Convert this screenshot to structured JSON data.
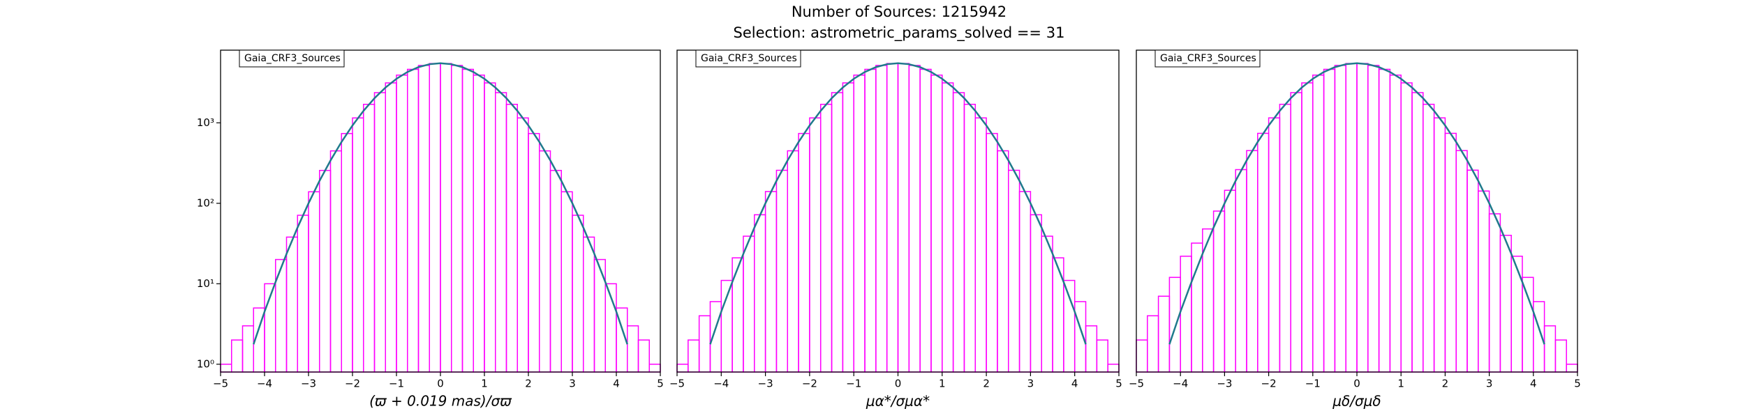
{
  "title": "Number of Sources: 1215942",
  "subtitle": "Selection: astrometric_params_solved == 31",
  "chart_data": [
    {
      "type": "histogram",
      "legend_label": "Gaia_CRF3_Sources",
      "xlabel": "(ϖ + 0.019 mas)/σϖ",
      "color": "#ff00ff",
      "yscale": "log",
      "xlim": [
        -5,
        5
      ],
      "ylim": [
        0.8,
        8000
      ],
      "bins": [
        -5,
        -4.75,
        -4.5,
        -4.25,
        -4,
        -3.75,
        -3.5,
        -3.25,
        -3,
        -2.75,
        -2.5,
        -2.25,
        -2,
        -1.75,
        -1.5,
        -1.25,
        -1,
        -0.75,
        -0.5,
        -0.25,
        0,
        0.25,
        0.5,
        0.75,
        1,
        1.25,
        1.5,
        1.75,
        2,
        2.25,
        2.5,
        2.75,
        3,
        3.25,
        3.5,
        3.75,
        4,
        4.25,
        4.5,
        4.75,
        5
      ],
      "counts": [
        1,
        2,
        3,
        5,
        10,
        20,
        38,
        71,
        139,
        256,
        448,
        736,
        1150,
        1698,
        2372,
        3135,
        3916,
        4623,
        5166,
        5462,
        5462,
        5166,
        4623,
        3916,
        3135,
        2372,
        1698,
        1150,
        736,
        448,
        256,
        139,
        71,
        38,
        20,
        10,
        5,
        3,
        2,
        1
      ],
      "curve": {
        "color": "#1f7a8c",
        "x": [
          -5,
          -4.75,
          -4.5,
          -4.25,
          -4,
          -3.75,
          -3.5,
          -3.25,
          -3,
          -2.75,
          -2.5,
          -2.25,
          -2,
          -1.75,
          -1.5,
          -1.25,
          -1,
          -0.75,
          -0.5,
          -0.25,
          0,
          0.25,
          0.5,
          0.75,
          1,
          1.25,
          1.5,
          1.75,
          2,
          2.25,
          2.5,
          2.75,
          3,
          3.25,
          3.5,
          3.75,
          4,
          4.25,
          4.5,
          4.75,
          5
        ],
        "values": [
          null,
          null,
          null,
          1.77,
          4.5,
          10.5,
          23.5,
          49.9,
          100,
          190,
          340,
          578,
          928,
          1407,
          2024,
          2744,
          3524,
          4282,
          4921,
          5349,
          5500,
          5349,
          4921,
          4282,
          3524,
          2744,
          2024,
          1407,
          928,
          578,
          340,
          190,
          100,
          49.9,
          23.5,
          10.5,
          4.5,
          1.77,
          null,
          null,
          null
        ]
      },
      "xticks": [
        {
          "value": -5,
          "label": "−5"
        },
        {
          "value": -4,
          "label": "−4"
        },
        {
          "value": -3,
          "label": "−3"
        },
        {
          "value": -2,
          "label": "−2"
        },
        {
          "value": -1,
          "label": "−1"
        },
        0,
        1,
        2,
        3,
        4,
        5
      ],
      "yticks": [
        {
          "value": 1,
          "label": "10⁰"
        },
        {
          "value": 10,
          "label": "10¹"
        },
        {
          "value": 100,
          "label": "10²"
        },
        {
          "value": 1000,
          "label": "10³"
        }
      ]
    },
    {
      "type": "histogram",
      "legend_label": "Gaia_CRF3_Sources",
      "xlabel": "μα*/σμα*",
      "color": "#ff00ff",
      "yscale": "log",
      "xlim": [
        -5,
        5
      ],
      "ylim": [
        0.8,
        8000
      ],
      "bins": [
        -5,
        -4.75,
        -4.5,
        -4.25,
        -4,
        -3.75,
        -3.5,
        -3.25,
        -3,
        -2.75,
        -2.5,
        -2.25,
        -2,
        -1.75,
        -1.5,
        -1.25,
        -1,
        -0.75,
        -0.5,
        -0.25,
        0,
        0.25,
        0.5,
        0.75,
        1,
        1.25,
        1.5,
        1.75,
        2,
        2.25,
        2.5,
        2.75,
        3,
        3.25,
        3.5,
        3.75,
        4,
        4.25,
        4.5,
        4.75,
        5
      ],
      "counts": [
        1,
        2,
        4,
        6,
        11,
        21,
        39,
        72,
        140,
        257,
        449,
        737,
        1151,
        1699,
        2373,
        3136,
        3917,
        4624,
        5167,
        5463,
        5463,
        5167,
        4624,
        3917,
        3136,
        2373,
        1699,
        1151,
        737,
        449,
        257,
        140,
        72,
        39,
        21,
        11,
        6,
        3,
        2,
        1
      ],
      "curve": {
        "color": "#1f7a8c",
        "x": [
          -5,
          -4.75,
          -4.5,
          -4.25,
          -4,
          -3.75,
          -3.5,
          -3.25,
          -3,
          -2.75,
          -2.5,
          -2.25,
          -2,
          -1.75,
          -1.5,
          -1.25,
          -1,
          -0.75,
          -0.5,
          -0.25,
          0,
          0.25,
          0.5,
          0.75,
          1,
          1.25,
          1.5,
          1.75,
          2,
          2.25,
          2.5,
          2.75,
          3,
          3.25,
          3.5,
          3.75,
          4,
          4.25,
          4.5,
          4.75,
          5
        ],
        "values": [
          null,
          null,
          null,
          1.77,
          4.5,
          10.5,
          23.5,
          49.9,
          100,
          190,
          340,
          578,
          928,
          1407,
          2024,
          2744,
          3524,
          4282,
          4921,
          5349,
          5500,
          5349,
          4921,
          4282,
          3524,
          2744,
          2024,
          1407,
          928,
          578,
          340,
          190,
          100,
          49.9,
          23.5,
          10.5,
          4.5,
          1.77,
          null,
          null,
          null
        ]
      },
      "xticks": [
        {
          "value": -5,
          "label": "−5"
        },
        {
          "value": -4,
          "label": "−4"
        },
        {
          "value": -3,
          "label": "−3"
        },
        {
          "value": -2,
          "label": "−2"
        },
        {
          "value": -1,
          "label": "−1"
        },
        0,
        1,
        2,
        3,
        4,
        5
      ]
    },
    {
      "type": "histogram",
      "legend_label": "Gaia_CRF3_Sources",
      "xlabel": "μδ/σμδ",
      "color": "#ff00ff",
      "yscale": "log",
      "xlim": [
        -5,
        5
      ],
      "ylim": [
        0.8,
        8000
      ],
      "bins": [
        -5,
        -4.75,
        -4.5,
        -4.25,
        -4,
        -3.75,
        -3.5,
        -3.25,
        -3,
        -2.75,
        -2.5,
        -2.25,
        -2,
        -1.75,
        -1.5,
        -1.25,
        -1,
        -0.75,
        -0.5,
        -0.25,
        0,
        0.25,
        0.5,
        0.75,
        1,
        1.25,
        1.5,
        1.75,
        2,
        2.25,
        2.5,
        2.75,
        3,
        3.25,
        3.5,
        3.75,
        4,
        4.25,
        4.5,
        4.75,
        5
      ],
      "counts": [
        2,
        4,
        7,
        12,
        22,
        32,
        48,
        80,
        145,
        262,
        452,
        740,
        1152,
        1700,
        2374,
        3137,
        3918,
        4625,
        5168,
        5464,
        5464,
        5168,
        4625,
        3918,
        3137,
        2374,
        1700,
        1152,
        740,
        452,
        258,
        142,
        74,
        40,
        22,
        12,
        6,
        3,
        2,
        1
      ],
      "curve": {
        "color": "#1f7a8c",
        "x": [
          -5,
          -4.75,
          -4.5,
          -4.25,
          -4,
          -3.75,
          -3.5,
          -3.25,
          -3,
          -2.75,
          -2.5,
          -2.25,
          -2,
          -1.75,
          -1.5,
          -1.25,
          -1,
          -0.75,
          -0.5,
          -0.25,
          0,
          0.25,
          0.5,
          0.75,
          1,
          1.25,
          1.5,
          1.75,
          2,
          2.25,
          2.5,
          2.75,
          3,
          3.25,
          3.5,
          3.75,
          4,
          4.25,
          4.5,
          4.75,
          5
        ],
        "values": [
          null,
          null,
          null,
          1.77,
          4.5,
          10.5,
          23.5,
          49.9,
          100,
          190,
          340,
          578,
          928,
          1407,
          2024,
          2744,
          3524,
          4282,
          4921,
          5349,
          5500,
          5349,
          4921,
          4282,
          3524,
          2744,
          2024,
          1407,
          928,
          578,
          340,
          190,
          100,
          49.9,
          23.5,
          10.5,
          4.5,
          1.77,
          null,
          null,
          null
        ]
      },
      "xticks": [
        {
          "value": -5,
          "label": "−5"
        },
        {
          "value": -4,
          "label": "−4"
        },
        {
          "value": -3,
          "label": "−3"
        },
        {
          "value": -2,
          "label": "−2"
        },
        {
          "value": -1,
          "label": "−1"
        },
        0,
        1,
        2,
        3,
        4,
        5
      ]
    }
  ]
}
